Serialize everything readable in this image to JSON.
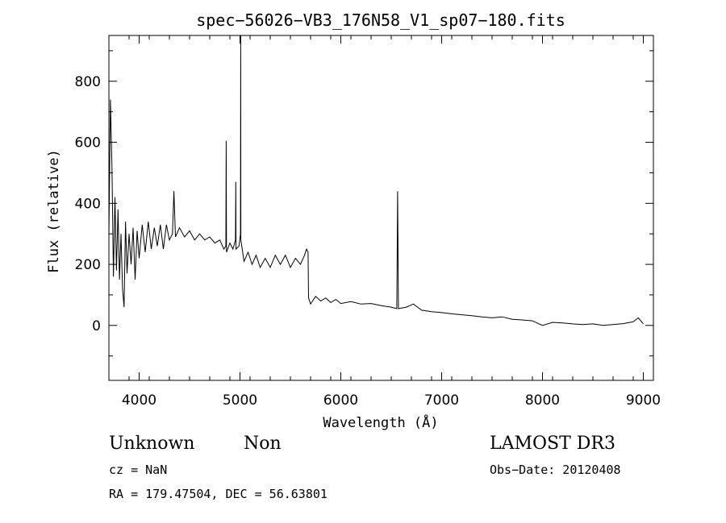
{
  "chart_data": {
    "type": "line",
    "title": "spec−56026−VB3_176N58_V1_sp07−180.fits",
    "xlabel": "Wavelength (Å)",
    "ylabel": "Flux (relative)",
    "xlim": [
      3700,
      9100
    ],
    "ylim": [
      -180,
      950
    ],
    "x_ticks": [
      4000,
      5000,
      6000,
      7000,
      8000,
      9000
    ],
    "y_ticks": [
      0,
      200,
      400,
      600,
      800
    ],
    "grid": false,
    "legend": "none",
    "series": [
      {
        "values": [
          [
            3700,
            300
          ],
          [
            3715,
            740
          ],
          [
            3730,
            520
          ],
          [
            3745,
            160
          ],
          [
            3760,
            420
          ],
          [
            3775,
            180
          ],
          [
            3790,
            380
          ],
          [
            3805,
            150
          ],
          [
            3820,
            300
          ],
          [
            3835,
            120
          ],
          [
            3850,
            60
          ],
          [
            3865,
            340
          ],
          [
            3880,
            170
          ],
          [
            3900,
            300
          ],
          [
            3920,
            200
          ],
          [
            3940,
            320
          ],
          [
            3960,
            150
          ],
          [
            3980,
            310
          ],
          [
            4000,
            220
          ],
          [
            4030,
            330
          ],
          [
            4060,
            240
          ],
          [
            4090,
            340
          ],
          [
            4120,
            250
          ],
          [
            4150,
            320
          ],
          [
            4180,
            260
          ],
          [
            4210,
            330
          ],
          [
            4240,
            250
          ],
          [
            4270,
            330
          ],
          [
            4300,
            280
          ],
          [
            4330,
            300
          ],
          [
            4345,
            440
          ],
          [
            4360,
            290
          ],
          [
            4400,
            320
          ],
          [
            4450,
            290
          ],
          [
            4500,
            310
          ],
          [
            4550,
            280
          ],
          [
            4600,
            300
          ],
          [
            4650,
            280
          ],
          [
            4700,
            290
          ],
          [
            4750,
            270
          ],
          [
            4800,
            280
          ],
          [
            4840,
            250
          ],
          [
            4860,
            260
          ],
          [
            4863,
            605
          ],
          [
            4866,
            240
          ],
          [
            4900,
            270
          ],
          [
            4930,
            250
          ],
          [
            4955,
            280
          ],
          [
            4958,
            470
          ],
          [
            4961,
            250
          ],
          [
            4990,
            260
          ],
          [
            5005,
            300
          ],
          [
            5007,
            950
          ],
          [
            5009,
            280
          ],
          [
            5040,
            210
          ],
          [
            5080,
            240
          ],
          [
            5120,
            200
          ],
          [
            5160,
            230
          ],
          [
            5200,
            190
          ],
          [
            5250,
            220
          ],
          [
            5300,
            190
          ],
          [
            5350,
            230
          ],
          [
            5400,
            200
          ],
          [
            5450,
            230
          ],
          [
            5500,
            190
          ],
          [
            5550,
            220
          ],
          [
            5600,
            200
          ],
          [
            5640,
            230
          ],
          [
            5660,
            250
          ],
          [
            5675,
            240
          ],
          [
            5680,
            90
          ],
          [
            5700,
            70
          ],
          [
            5750,
            95
          ],
          [
            5800,
            80
          ],
          [
            5850,
            90
          ],
          [
            5900,
            75
          ],
          [
            5950,
            85
          ],
          [
            6000,
            72
          ],
          [
            6100,
            78
          ],
          [
            6200,
            70
          ],
          [
            6300,
            72
          ],
          [
            6400,
            65
          ],
          [
            6500,
            60
          ],
          [
            6555,
            55
          ],
          [
            6563,
            440
          ],
          [
            6571,
            55
          ],
          [
            6650,
            60
          ],
          [
            6720,
            70
          ],
          [
            6800,
            50
          ],
          [
            6900,
            45
          ],
          [
            7000,
            42
          ],
          [
            7100,
            38
          ],
          [
            7200,
            35
          ],
          [
            7300,
            32
          ],
          [
            7400,
            28
          ],
          [
            7500,
            25
          ],
          [
            7600,
            28
          ],
          [
            7700,
            20
          ],
          [
            7800,
            18
          ],
          [
            7900,
            15
          ],
          [
            8000,
            0
          ],
          [
            8100,
            10
          ],
          [
            8200,
            8
          ],
          [
            8300,
            5
          ],
          [
            8400,
            3
          ],
          [
            8500,
            5
          ],
          [
            8600,
            0
          ],
          [
            8700,
            3
          ],
          [
            8800,
            6
          ],
          [
            8900,
            12
          ],
          [
            8950,
            25
          ],
          [
            9000,
            5
          ]
        ]
      }
    ]
  },
  "labels": {
    "object_class": "Unknown",
    "object_subclass": "Non",
    "survey": "LAMOST DR3",
    "redshift": "cz = NaN",
    "obs_date": "Obs−Date: 20120408",
    "coords": "RA = 179.47504, DEC =  56.63801"
  }
}
